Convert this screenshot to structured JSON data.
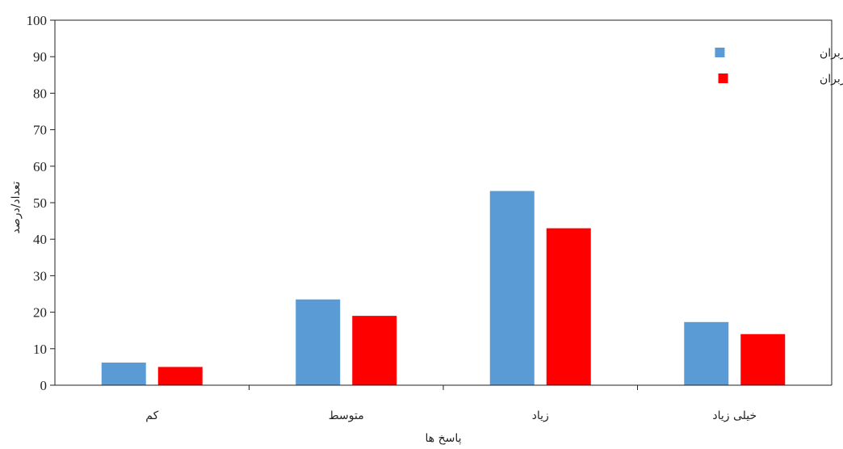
{
  "chart_data": {
    "type": "bar",
    "categories": [
      "کم",
      "متوسط",
      "زیاد",
      "خیلی زیاد"
    ],
    "series": [
      {
        "name": "درصد پاسخ کاربران",
        "color": "#5b9bd5",
        "values": [
          6.2,
          23.5,
          53.2,
          17.3
        ]
      },
      {
        "name": "تعداد پاسخ کاربران",
        "color": "#ff0000",
        "values": [
          5,
          19,
          43,
          14
        ]
      }
    ],
    "title": "",
    "xlabel": "پاسخ ها",
    "ylabel": "تعداد/درصد",
    "ylim": [
      0,
      100
    ],
    "yticks": [
      0,
      10,
      20,
      30,
      40,
      50,
      60,
      70,
      80,
      90,
      100
    ],
    "grid": false,
    "legend_position": "top-right"
  }
}
